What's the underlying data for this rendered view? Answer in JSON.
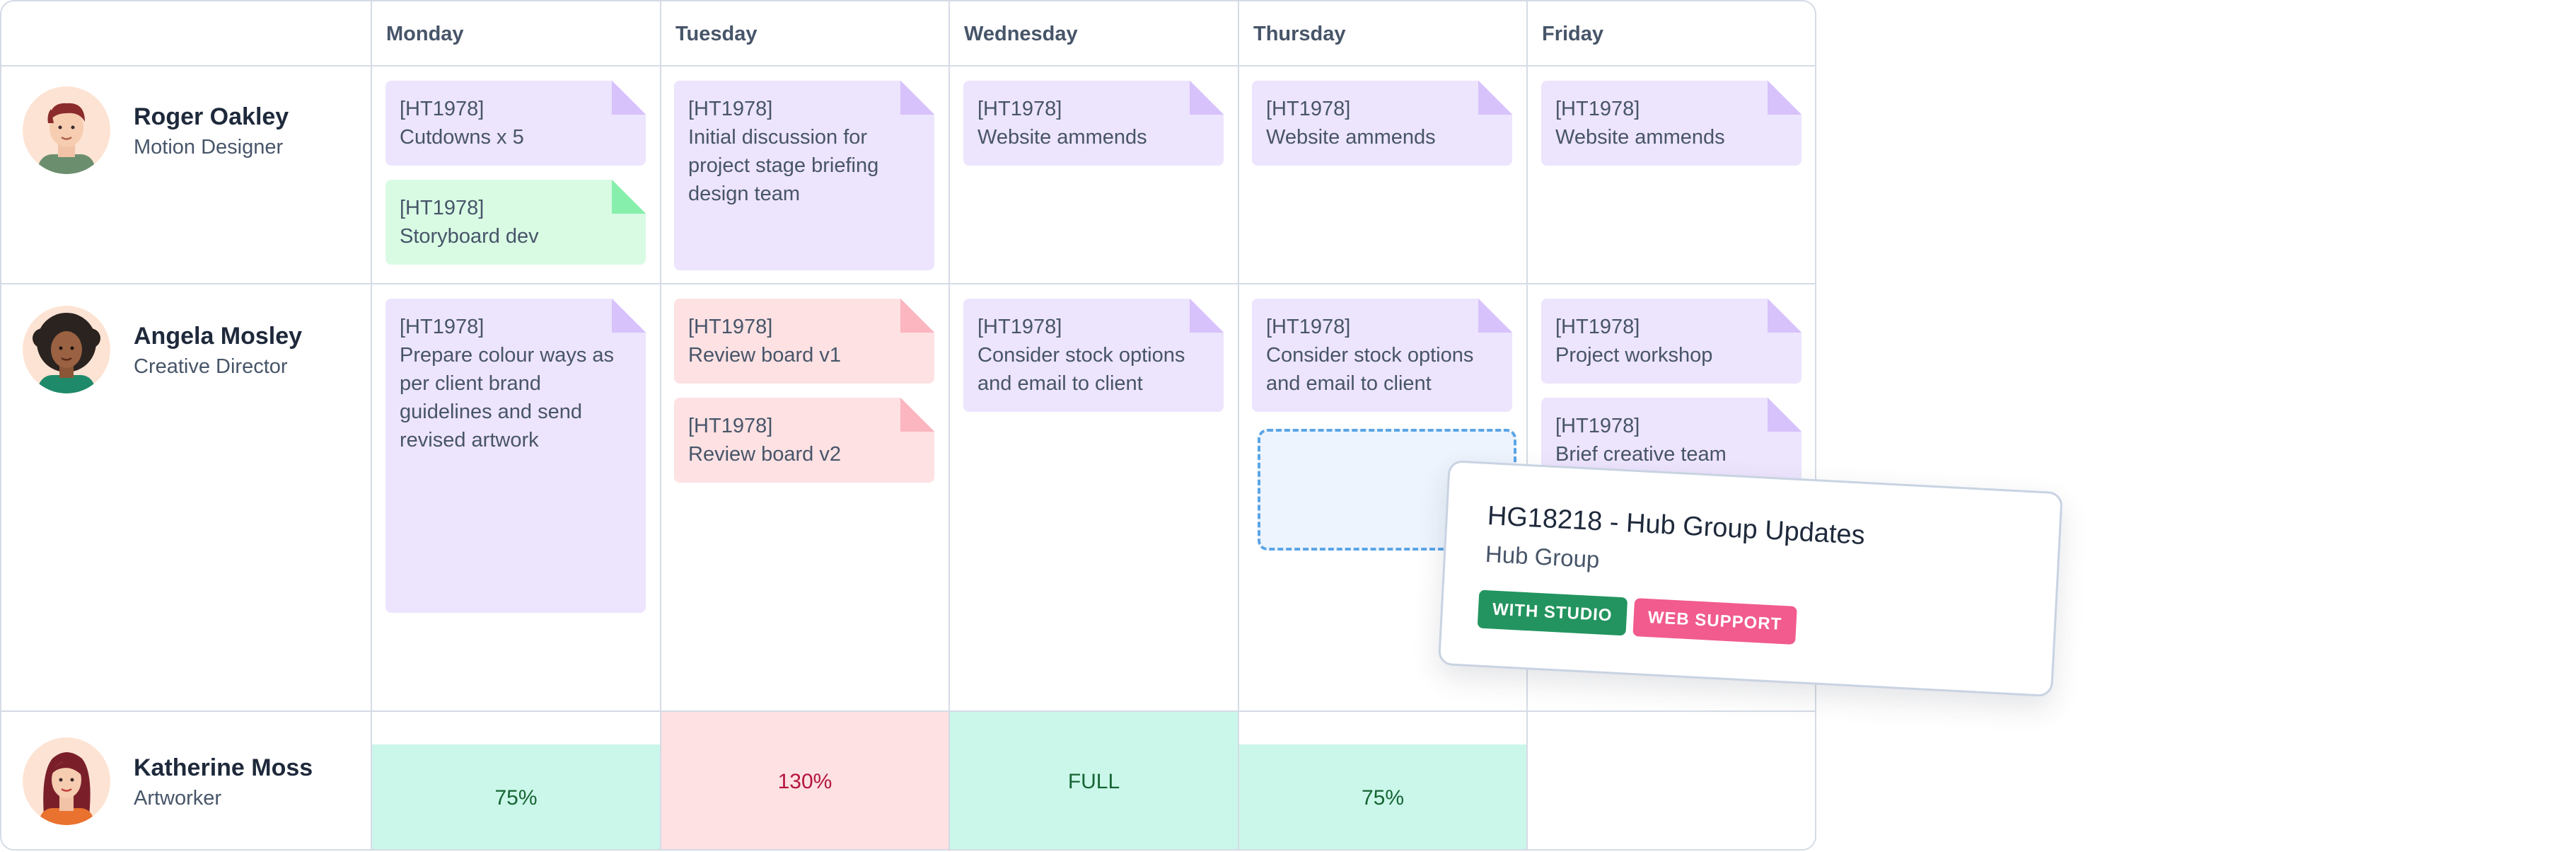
{
  "days": [
    "Monday",
    "Tuesday",
    "Wednesday",
    "Thursday",
    "Friday"
  ],
  "people": [
    {
      "name": "Roger Oakley",
      "role": "Motion Designer",
      "avatar": "person-avatar-roger",
      "tasks": {
        "monday": [
          {
            "code": "[HT1978]",
            "title": "Cutdowns x 5",
            "color": "purple"
          },
          {
            "code": "[HT1978]",
            "title": "Storyboard dev",
            "color": "green"
          }
        ],
        "tuesday": [
          {
            "code": "[HT1978]",
            "title": "Initial discussion for project stage briefing design team",
            "color": "purple"
          }
        ],
        "wednesday": [
          {
            "code": "[HT1978]",
            "title": "Website ammends",
            "color": "purple"
          }
        ],
        "thursday": [
          {
            "code": "[HT1978]",
            "title": "Website ammends",
            "color": "purple"
          }
        ],
        "friday": [
          {
            "code": "[HT1978]",
            "title": "Website ammends",
            "color": "purple"
          }
        ]
      }
    },
    {
      "name": "Angela Mosley",
      "role": "Creative Director",
      "avatar": "person-avatar-angela",
      "tasks": {
        "monday": [
          {
            "code": "[HT1978]",
            "title": "Prepare colour ways as per client brand guidelines and send revised artwork",
            "color": "purple"
          }
        ],
        "tuesday": [
          {
            "code": "[HT1978]",
            "title": "Review board v1",
            "color": "pink"
          },
          {
            "code": "[HT1978]",
            "title": "Review board v2",
            "color": "pink"
          }
        ],
        "wednesday": [
          {
            "code": "[HT1978]",
            "title": "Consider stock options and email to client",
            "color": "purple"
          }
        ],
        "thursday": [
          {
            "code": "[HT1978]",
            "title": "Consider stock options and email to client",
            "color": "purple"
          }
        ],
        "friday": [
          {
            "code": "[HT1978]",
            "title": "Project workshop",
            "color": "purple"
          },
          {
            "code": "[HT1978]",
            "title": "Brief creative team",
            "color": "purple"
          }
        ]
      }
    },
    {
      "name": "Katherine Moss",
      "role": "Artworker",
      "avatar": "person-avatar-katherine",
      "capacity": [
        {
          "day": "Monday",
          "label": "75%",
          "status": "ok"
        },
        {
          "day": "Tuesday",
          "label": "130%",
          "status": "over"
        },
        {
          "day": "Wednesday",
          "label": "FULL",
          "status": "ok"
        },
        {
          "day": "Thursday",
          "label": "75%",
          "status": "ok"
        }
      ]
    }
  ],
  "dragged_card": {
    "title": "HG18218 - Hub Group Updates",
    "client": "Hub Group",
    "badges": [
      {
        "label": "WITH STUDIO",
        "color": "#23945f"
      },
      {
        "label": "WEB SUPPORT",
        "color": "#f15b8e"
      }
    ]
  },
  "colors": {
    "grid_line": "#d5dbe6",
    "task_purple": "#ede4fd",
    "task_green": "#d9fbe4",
    "task_pink": "#fde1e3",
    "capacity_ok": "#cbf7ea",
    "capacity_over": "#fde1e3",
    "drop_zone_border": "#5aa5e6"
  }
}
